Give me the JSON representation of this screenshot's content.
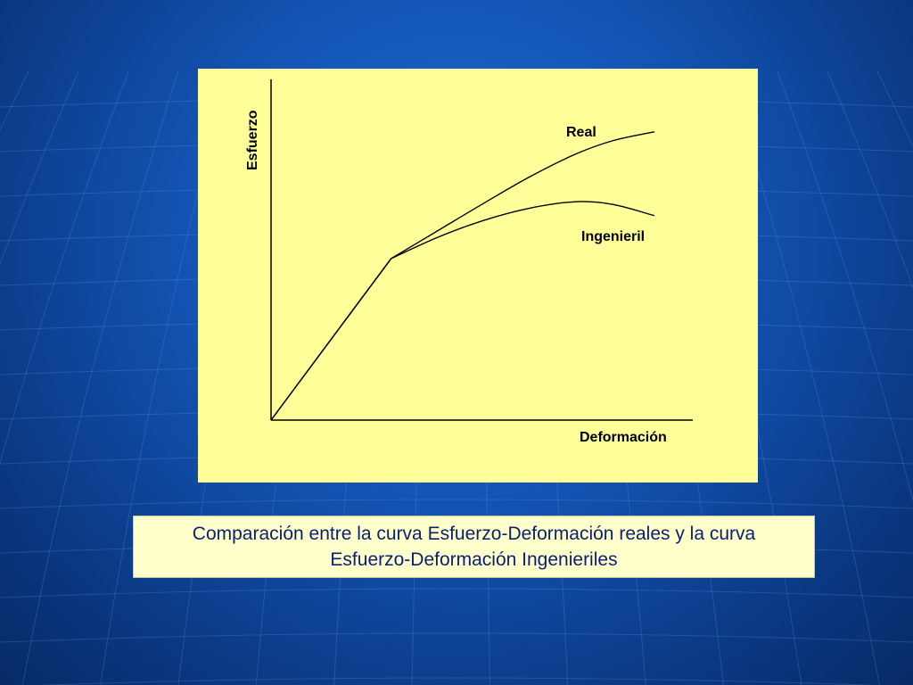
{
  "caption": {
    "text": "Comparación entre la curva Esfuerzo-Deformación reales y la curva Esfuerzo-Deformación Ingenieriles"
  },
  "colors": {
    "background": "#1355b5",
    "chart_panel": "#ffff99",
    "caption_box": "#ffffcc",
    "caption_text": "#0a1f73",
    "curve": "#000000"
  },
  "chart_data": {
    "type": "line",
    "xlabel": "Deformación",
    "ylabel": "Esfuerzo",
    "xlim": [
      0,
      1
    ],
    "ylim": [
      0,
      1
    ],
    "grid": false,
    "ticks": false,
    "series": [
      {
        "name": "Real",
        "x": [
          0,
          0.26,
          0.36,
          0.46,
          0.56,
          0.66,
          0.74,
          0.83
        ],
        "y": [
          0,
          0.474,
          0.555,
          0.636,
          0.714,
          0.781,
          0.82,
          0.846
        ]
      },
      {
        "name": "Ingenieril",
        "x": [
          0,
          0.26,
          0.36,
          0.46,
          0.56,
          0.66,
          0.74,
          0.83
        ],
        "y": [
          0,
          0.474,
          0.536,
          0.586,
          0.622,
          0.641,
          0.633,
          0.6
        ]
      }
    ]
  }
}
